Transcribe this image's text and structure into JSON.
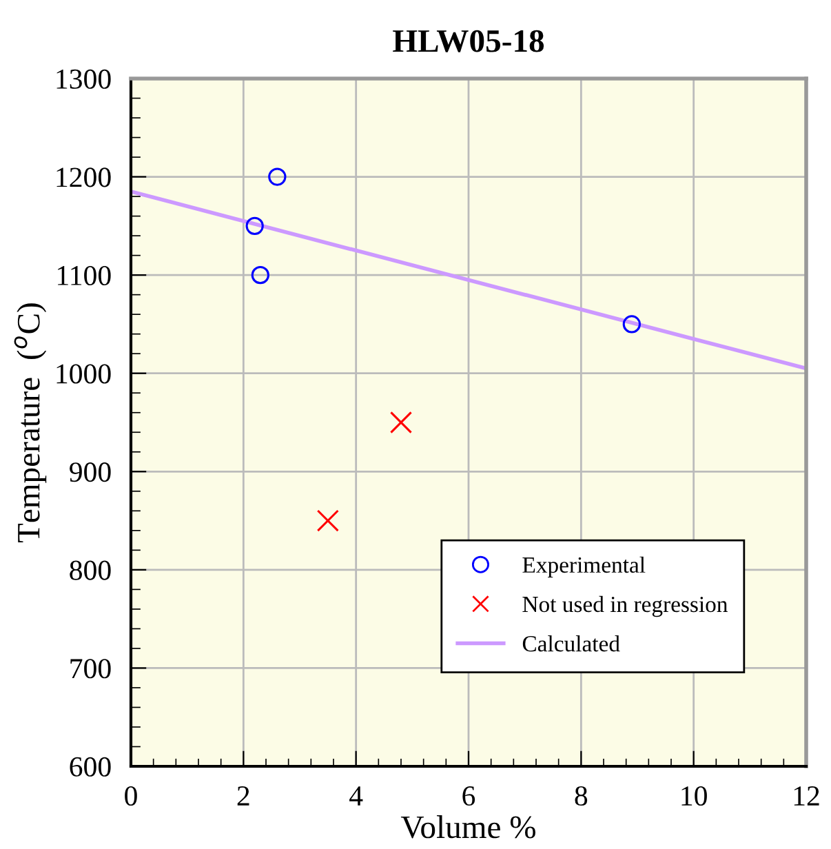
{
  "chart_data": {
    "type": "scatter",
    "title": "HLW05-18",
    "xlabel": "Volume %",
    "ylabel": "Temperature  ($^{o}$C)",
    "xlim": [
      0,
      12
    ],
    "ylim": [
      600,
      1300
    ],
    "xticks": [
      0,
      2,
      4,
      6,
      8,
      10,
      12
    ],
    "yticks": [
      600,
      700,
      800,
      900,
      1000,
      1100,
      1200,
      1300
    ],
    "grid": true,
    "legend": "bottom right",
    "series": [
      {
        "name": "Experimental",
        "marker": "circle",
        "color": "#0000ff",
        "x": [
          2.2,
          2.3,
          2.6,
          8.9
        ],
        "values": [
          1150,
          1100,
          1200,
          1050
        ]
      },
      {
        "name": "Not used in regression",
        "marker": "cross",
        "color": "#ff0000",
        "x": [
          3.5,
          4.8
        ],
        "values": [
          850,
          950
        ]
      },
      {
        "name": "Calculated",
        "type": "line",
        "marker": "none",
        "line_style": "solid",
        "color": "#cc99ff",
        "x": [
          0,
          12
        ],
        "values": [
          1185,
          1005
        ]
      }
    ]
  }
}
